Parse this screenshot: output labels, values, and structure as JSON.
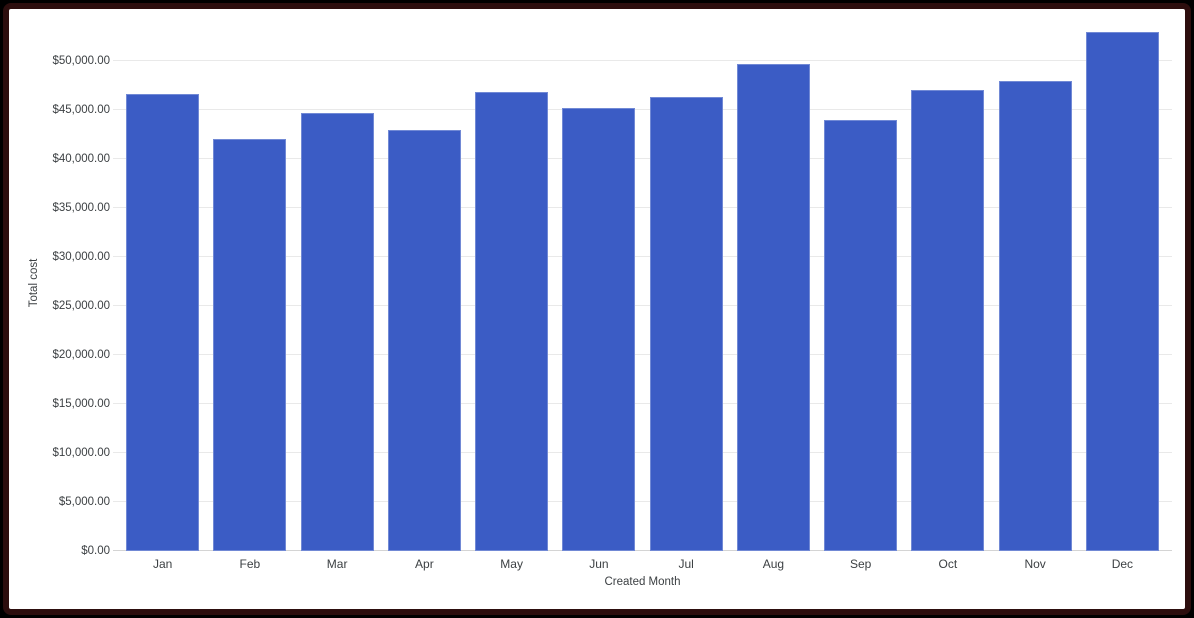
{
  "colors": {
    "bar": "#3b5cc5",
    "gridline": "#e9e9e9",
    "axis_baseline": "#d4d4d4",
    "label_text": "#3c4043",
    "frame_border": "#2d0e0e",
    "outer_background": "#000000",
    "chart_background": "#ffffff"
  },
  "chart_data": {
    "type": "bar",
    "title": "",
    "xlabel": "Created Month",
    "ylabel": "Total cost",
    "categories": [
      "Jan",
      "Feb",
      "Mar",
      "Apr",
      "May",
      "Jun",
      "Jul",
      "Aug",
      "Sep",
      "Oct",
      "Nov",
      "Dec"
    ],
    "values": [
      46600,
      42000,
      44700,
      43000,
      46800,
      45200,
      46300,
      49700,
      44000,
      47000,
      48000,
      53000
    ],
    "ylim": [
      0,
      55000
    ],
    "y_tick_step": 5000,
    "y_tick_labels": [
      "$0.00",
      "$5,000.00",
      "$10,000.00",
      "$15,000.00",
      "$20,000.00",
      "$25,000.00",
      "$30,000.00",
      "$35,000.00",
      "$40,000.00",
      "$45,000.00",
      "$50,000.00"
    ],
    "grid": true,
    "legend": "none",
    "series_color": "#3b5cc5"
  }
}
